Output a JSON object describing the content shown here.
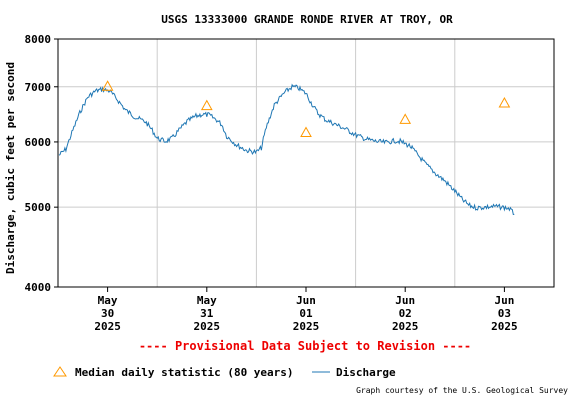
{
  "chart_data": {
    "type": "line",
    "title": "USGS 13333000 GRANDE RONDE RIVER AT TROY, OR",
    "ylabel": "Discharge, cubic feet per second",
    "xlabel": "",
    "y_scale": "log",
    "ylim": [
      4000,
      8000
    ],
    "y_ticks": [
      "8000",
      "7000",
      "6000",
      "5000",
      "4000"
    ],
    "y_tick_values": [
      8000,
      7000,
      6000,
      5000,
      4000
    ],
    "x_range_days": [
      -0.5,
      4.5
    ],
    "x_ticks": [
      {
        "day": 0,
        "lines": [
          "May",
          "30",
          "2025"
        ]
      },
      {
        "day": 1,
        "lines": [
          "May",
          "31",
          "2025"
        ]
      },
      {
        "day": 2,
        "lines": [
          "Jun",
          "01",
          "2025"
        ]
      },
      {
        "day": 3,
        "lines": [
          "Jun",
          "02",
          "2025"
        ]
      },
      {
        "day": 4,
        "lines": [
          "Jun",
          "03",
          "2025"
        ]
      }
    ],
    "grid": true,
    "series": [
      {
        "name": "Discharge",
        "color": "#1f77b4",
        "points": [
          [
            -0.49,
            5780
          ],
          [
            -0.42,
            5880
          ],
          [
            -0.35,
            6200
          ],
          [
            -0.27,
            6550
          ],
          [
            -0.2,
            6800
          ],
          [
            -0.12,
            6920
          ],
          [
            -0.05,
            6950
          ],
          [
            0.02,
            6920
          ],
          [
            0.1,
            6750
          ],
          [
            0.18,
            6560
          ],
          [
            0.28,
            6430
          ],
          [
            0.38,
            6350
          ],
          [
            0.45,
            6200
          ],
          [
            0.5,
            6060
          ],
          [
            0.58,
            6010
          ],
          [
            0.65,
            6060
          ],
          [
            0.72,
            6200
          ],
          [
            0.8,
            6350
          ],
          [
            0.88,
            6440
          ],
          [
            0.95,
            6480
          ],
          [
            1.02,
            6470
          ],
          [
            1.1,
            6380
          ],
          [
            1.15,
            6300
          ],
          [
            1.2,
            6100
          ],
          [
            1.3,
            5950
          ],
          [
            1.4,
            5860
          ],
          [
            1.5,
            5830
          ],
          [
            1.55,
            5900
          ],
          [
            1.6,
            6250
          ],
          [
            1.68,
            6650
          ],
          [
            1.78,
            6880
          ],
          [
            1.86,
            7000
          ],
          [
            1.92,
            6980
          ],
          [
            2.0,
            6870
          ],
          [
            2.05,
            6700
          ],
          [
            2.12,
            6500
          ],
          [
            2.2,
            6380
          ],
          [
            2.3,
            6300
          ],
          [
            2.4,
            6220
          ],
          [
            2.5,
            6120
          ],
          [
            2.6,
            6050
          ],
          [
            2.7,
            6010
          ],
          [
            2.8,
            5990
          ],
          [
            2.9,
            6020
          ],
          [
            2.95,
            6010
          ],
          [
            3.05,
            5930
          ],
          [
            3.12,
            5800
          ],
          [
            3.2,
            5650
          ],
          [
            3.3,
            5500
          ],
          [
            3.4,
            5380
          ],
          [
            3.5,
            5230
          ],
          [
            3.58,
            5100
          ],
          [
            3.65,
            5020
          ],
          [
            3.72,
            4990
          ],
          [
            3.8,
            5000
          ],
          [
            3.9,
            5010
          ],
          [
            3.98,
            5000
          ],
          [
            4.05,
            4980
          ],
          [
            4.1,
            4900
          ]
        ]
      },
      {
        "name": "Median daily statistic (80 years)",
        "color": "#ff9900",
        "marker": "triangle",
        "points": [
          [
            0,
            7010
          ],
          [
            1,
            6640
          ],
          [
            2,
            6160
          ],
          [
            3,
            6390
          ],
          [
            4,
            6690
          ]
        ]
      }
    ],
    "annotations": [
      "---- Provisional Data Subject to Revision ----"
    ]
  },
  "legend": {
    "median_label": "Median daily statistic (80 years)",
    "discharge_label": "Discharge"
  },
  "footer": {
    "credit": "Graph courtesy of the U.S. Geological Survey"
  },
  "colors": {
    "discharge": "#1f77b4",
    "median": "#ff9900",
    "provisional": "#ee0000",
    "grid": "#cccccc"
  }
}
